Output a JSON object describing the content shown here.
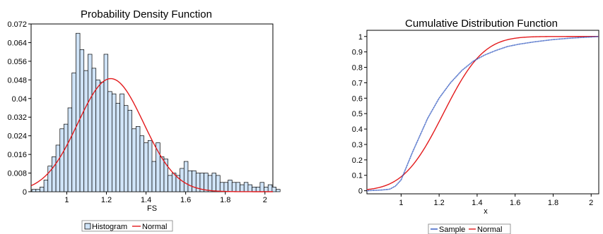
{
  "colors": {
    "hist_fill": "#cfe3f7",
    "hist_stroke": "#000000",
    "normal": "#e31a1c",
    "sample": "#2a52be"
  },
  "chart_data": [
    {
      "type": "bar",
      "title": "Probability Density Function",
      "xlabel": "FS",
      "ylabel": "",
      "xlim": [
        0.82,
        2.04
      ],
      "ylim": [
        0,
        0.072
      ],
      "x_ticks": [
        1,
        1.2,
        1.4,
        1.6,
        1.8,
        2
      ],
      "x_tick_labels": [
        "1",
        "1.2",
        "1.4",
        "1.6",
        "1.8",
        "2"
      ],
      "y_ticks": [
        0,
        0.008,
        0.016,
        0.024,
        0.032,
        0.04,
        0.048,
        0.056,
        0.064,
        0.072
      ],
      "y_tick_labels": [
        "0",
        "0.008",
        "0.016",
        "0.024",
        "0.032",
        "0.04",
        "0.048",
        "0.056",
        "0.064",
        "0.072"
      ],
      "bin_start": 0.824,
      "bin_width": 0.0202,
      "series": [
        {
          "name": "Histogram",
          "values": [
            0.001,
            0.001,
            0.002,
            0.005,
            0.011,
            0.015,
            0.02,
            0.027,
            0.029,
            0.036,
            0.051,
            0.068,
            0.061,
            0.052,
            0.059,
            0.053,
            0.048,
            0.047,
            0.059,
            0.043,
            0.042,
            0.038,
            0.042,
            0.037,
            0.035,
            0.027,
            0.028,
            0.024,
            0.021,
            0.022,
            0.013,
            0.021,
            0.015,
            0.014,
            0.007,
            0.008,
            0.007,
            0.01,
            0.013,
            0.009,
            0.009,
            0.008,
            0.008,
            0.008,
            0.007,
            0.008,
            0.007,
            0.004,
            0.004,
            0.005,
            0.004,
            0.004,
            0.003,
            0.004,
            0.003,
            0.002,
            0.002,
            0.004,
            0.002,
            0.003,
            0.002,
            0.001
          ]
        },
        {
          "name": "Normal",
          "type": "line",
          "mean": 1.222,
          "std": 0.166
        }
      ],
      "legend_position": "bottom"
    },
    {
      "type": "line",
      "title": "Cumulative Distribution Function",
      "xlabel": "x",
      "ylabel": "",
      "xlim": [
        0.82,
        2.04
      ],
      "ylim": [
        -0.02,
        1.04
      ],
      "x_ticks": [
        1,
        1.2,
        1.4,
        1.6,
        1.8,
        2
      ],
      "x_tick_labels": [
        "1",
        "1.2",
        "1.4",
        "1.6",
        "1.8",
        "2"
      ],
      "y_ticks": [
        0,
        0.1,
        0.2,
        0.3,
        0.4,
        0.5,
        0.6,
        0.7,
        0.8,
        0.9,
        1
      ],
      "y_tick_labels": [
        "0",
        "0.1",
        "0.2",
        "0.3",
        "0.4",
        "0.5",
        "0.6",
        "0.7",
        "0.8",
        "0.9",
        "1"
      ],
      "series": [
        {
          "name": "Sample",
          "x": [
            0.82,
            0.9,
            0.94,
            0.97,
            1.0,
            1.03,
            1.06,
            1.1,
            1.14,
            1.2,
            1.26,
            1.32,
            1.38,
            1.44,
            1.5,
            1.56,
            1.62,
            1.7,
            1.8,
            1.9,
            2.0,
            2.04
          ],
          "y": [
            0.0,
            0.005,
            0.01,
            0.03,
            0.07,
            0.16,
            0.25,
            0.36,
            0.47,
            0.6,
            0.7,
            0.78,
            0.84,
            0.88,
            0.91,
            0.935,
            0.95,
            0.965,
            0.98,
            0.99,
            0.997,
            1.0
          ]
        },
        {
          "name": "Normal",
          "mean": 1.222,
          "std": 0.166
        }
      ],
      "legend_position": "bottom"
    }
  ]
}
